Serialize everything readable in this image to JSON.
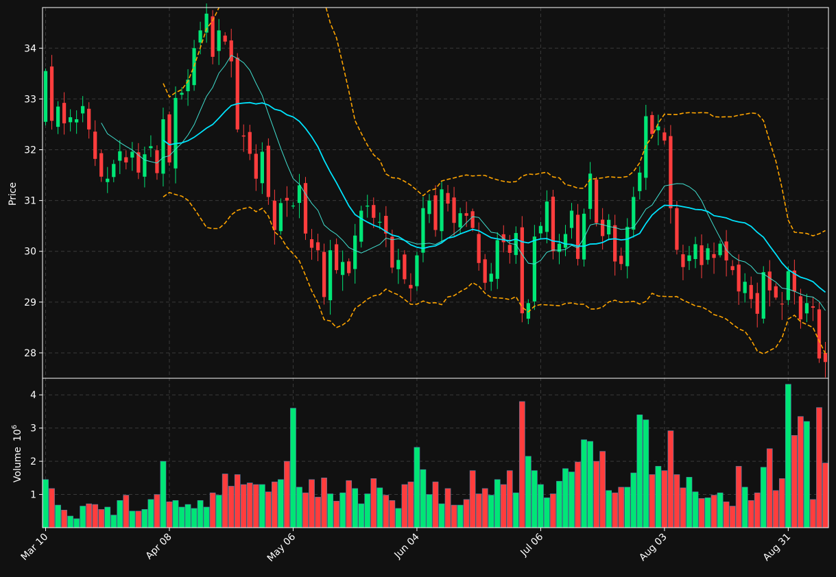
{
  "chart_data": {
    "type": "candlestick",
    "title": "",
    "x_ticks": [
      "Mar 10",
      "Apr 08",
      "May 06",
      "Jun 04",
      "Jul 06",
      "Aug 03",
      "Aug 31"
    ],
    "price_panel": {
      "ylabel": "Price",
      "ylim": [
        27.5,
        34.8
      ],
      "y_ticks": [
        28,
        29,
        30,
        31,
        32,
        33,
        34
      ],
      "grid": true
    },
    "volume_panel": {
      "ylabel": "Volume",
      "ylabel_exponent": "10",
      "ylabel_power": "6",
      "ylim": [
        0,
        4.5
      ],
      "y_ticks": [
        1,
        2,
        3,
        4
      ],
      "grid": true
    },
    "colors": {
      "background": "#111111",
      "up": "#00e676",
      "down": "#ff3d3d",
      "ma_fast": "#40e0d0",
      "ma_slow": "#00e5ff",
      "bands": "#ffa500",
      "grid": "#3a3a3a",
      "axis": "#ffffff"
    },
    "ohlc_close_approx": [
      33.55,
      32.57,
      32.85,
      32.52,
      32.64,
      32.6,
      32.86,
      32.4,
      31.82,
      31.47,
      31.43,
      31.72,
      31.97,
      31.75,
      31.96,
      31.55,
      31.91,
      32.07,
      31.54,
      32.6,
      31.75,
      33.02,
      33.12,
      33.38,
      34.0,
      34.35,
      34.68,
      33.83,
      34.35,
      34.13,
      33.74,
      32.4,
      32.26,
      31.92,
      31.43,
      31.96,
      31.07,
      30.42,
      30.95,
      31.0,
      30.9,
      31.3,
      30.35,
      30.07,
      30.02,
      29.1,
      30.02,
      29.63,
      29.79,
      29.57,
      30.31,
      30.8,
      30.9,
      30.66,
      30.58,
      30.35,
      29.68,
      29.83,
      29.45,
      29.27,
      29.92,
      30.85,
      31.0,
      30.42,
      31.22,
      30.94,
      30.56,
      30.75,
      30.7,
      30.46,
      29.77,
      29.38,
      29.56,
      30.22,
      30.18,
      29.97,
      30.36,
      28.78,
      28.98,
      30.29,
      30.5,
      30.98,
      30.0,
      30.15,
      30.34,
      30.8,
      29.85,
      30.74,
      31.53,
      30.56,
      30.3,
      30.62,
      29.8,
      29.75,
      30.48,
      31.07,
      31.55,
      32.66,
      32.31,
      32.46,
      32.18,
      30.85,
      30.03,
      29.69,
      29.92,
      30.14,
      29.73,
      30.06,
      29.87,
      30.15,
      29.82,
      29.63,
      29.21,
      29.4,
      29.06,
      28.77,
      29.59,
      29.23,
      29.09,
      28.96,
      29.61,
      29.21,
      28.66,
      28.98,
      28.89,
      27.89,
      27.82
    ],
    "volume_approx": [
      1.45,
      1.18,
      0.68,
      0.53,
      0.35,
      0.27,
      0.65,
      0.72,
      0.7,
      0.55,
      0.62,
      0.38,
      0.82,
      0.98,
      0.5,
      0.5,
      0.55,
      0.85,
      1.0,
      2.0,
      0.78,
      0.82,
      0.62,
      0.7,
      0.58,
      0.82,
      0.62,
      1.05,
      0.98,
      1.62,
      1.25,
      1.6,
      1.3,
      1.35,
      1.3,
      1.3,
      1.08,
      1.38,
      1.45,
      2.0,
      3.6,
      1.22,
      1.05,
      1.45,
      0.92,
      1.5,
      1.02,
      0.8,
      1.05,
      1.42,
      1.18,
      0.72,
      1.02,
      1.48,
      1.2,
      0.98,
      0.82,
      0.58,
      1.3,
      1.38,
      2.42,
      1.75,
      1.0,
      1.38,
      0.72,
      1.18,
      0.68,
      0.68,
      0.85,
      1.72,
      1.02,
      1.18,
      0.98,
      1.45,
      1.3,
      1.72,
      1.05,
      3.8,
      2.15,
      1.72,
      1.3,
      0.9,
      1.02,
      1.4,
      1.78,
      1.68,
      1.98,
      2.65,
      2.6,
      2.0,
      2.3,
      1.12,
      1.05,
      1.22,
      1.22,
      1.65,
      3.4,
      3.25,
      1.6,
      1.85,
      1.72,
      2.92,
      1.6,
      1.2,
      1.52,
      1.08,
      0.88,
      0.9,
      0.98,
      1.05,
      0.78,
      0.65,
      1.85,
      1.22,
      0.82,
      1.05,
      1.82,
      2.38,
      1.12,
      1.48,
      4.32,
      2.78,
      3.35,
      3.2,
      0.85,
      3.62,
      1.95
    ]
  }
}
